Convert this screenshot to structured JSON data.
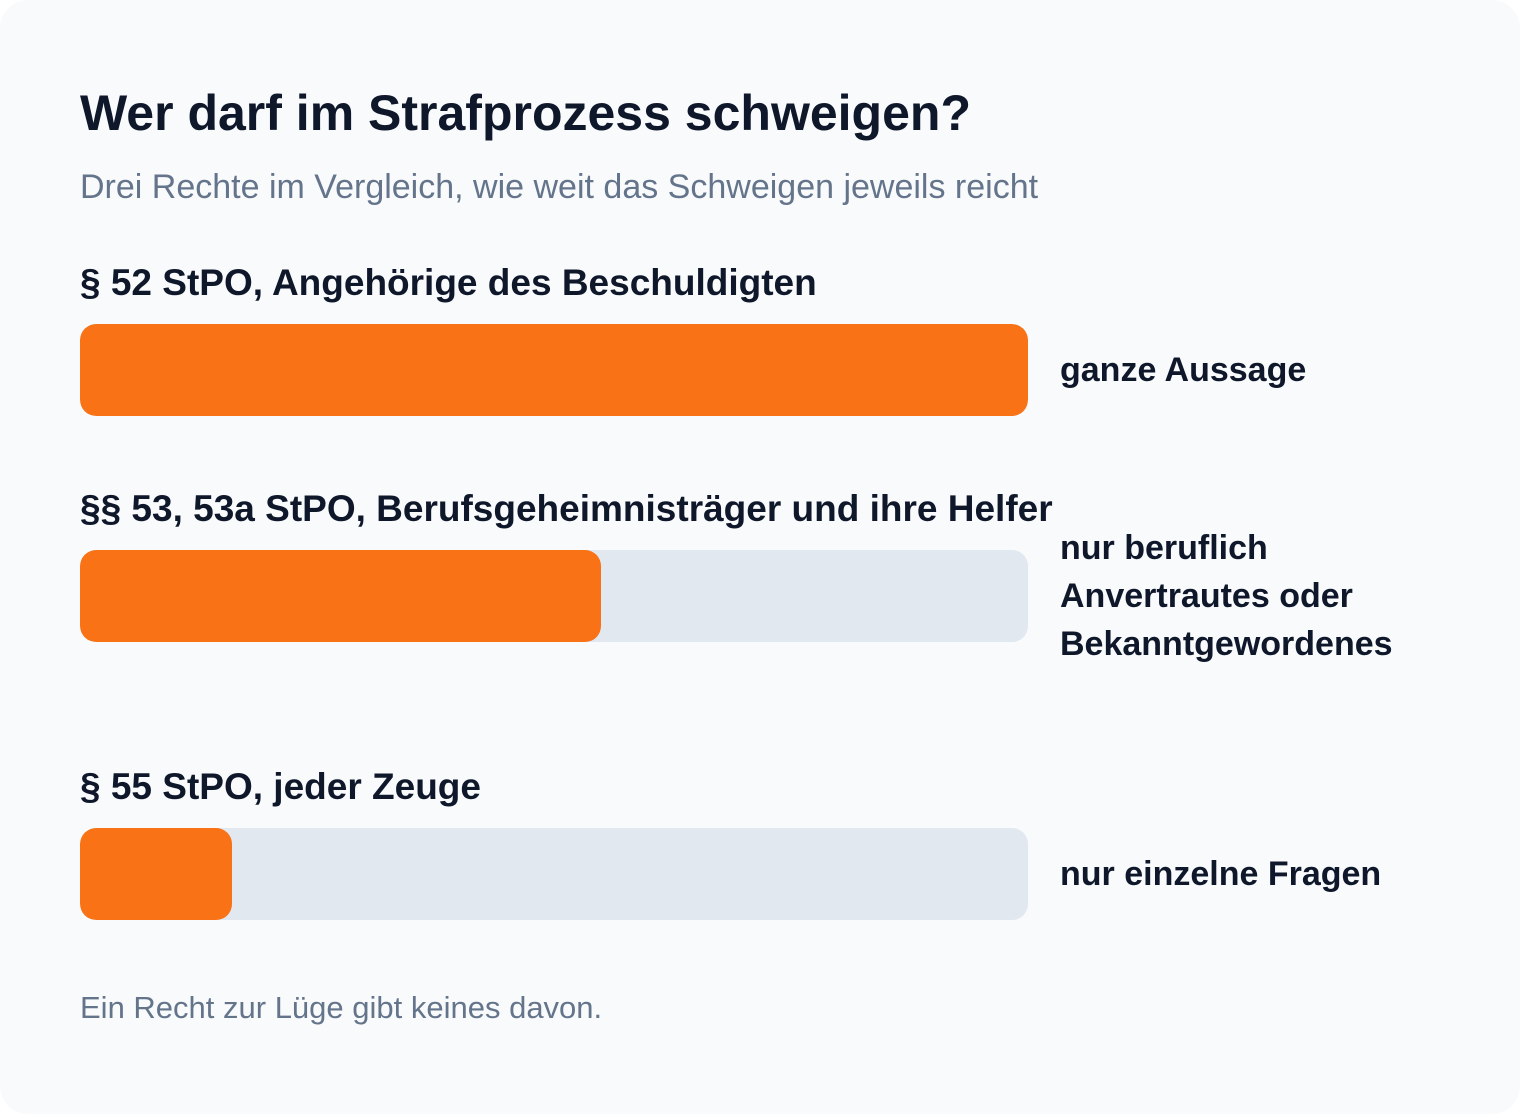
{
  "chart_data": {
    "type": "bar",
    "title": "Wer darf im Strafprozess schweigen?",
    "subtitle": "Drei Rechte im Vergleich, wie weit das Schweigen jeweils reicht",
    "categories": [
      "§ 52 StPO, Angehörige des Beschuldigten",
      "§§ 53, 53a StPO, Berufsgeheimnisträger und ihre Helfer",
      "§ 55 StPO, jeder Zeuge"
    ],
    "values": [
      100,
      55,
      16
    ],
    "scope_labels": [
      "ganze Aussage",
      "nur beruflich Anvertrautes oder Bekanntgewordenes",
      "nur einzelne Fragen"
    ],
    "xlim": [
      0,
      100
    ],
    "color": "#f97316",
    "footnote": "Ein Recht zur Lüge gibt keines davon."
  }
}
